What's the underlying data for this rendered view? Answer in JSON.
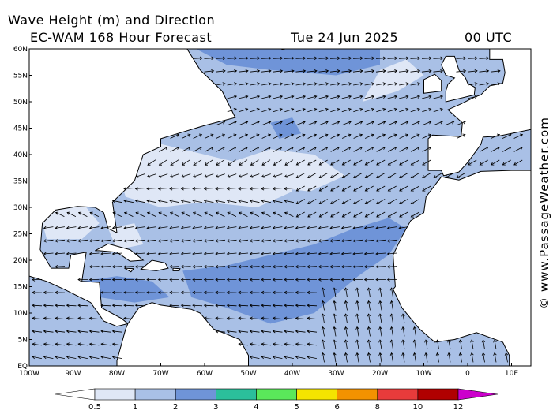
{
  "header": {
    "title": "Wave Height (m) and Direction",
    "model": "EC-WAM 168 Hour Forecast",
    "date": "Tue 24 Jun 2025",
    "time": "00 UTC"
  },
  "watermark": "© www.PassageWeather.com",
  "lat_labels": [
    "60N",
    "55N",
    "50N",
    "45N",
    "40N",
    "35N",
    "30N",
    "25N",
    "20N",
    "15N",
    "10N",
    "5N",
    "EQ"
  ],
  "lon_labels": [
    "100W",
    "90W",
    "80W",
    "70W",
    "60W",
    "50W",
    "40W",
    "30W",
    "20W",
    "10W",
    "0",
    "10E"
  ],
  "legend": {
    "labels": [
      "0.5",
      "1",
      "2",
      "3",
      "4",
      "5",
      "6",
      "8",
      "10",
      "12"
    ],
    "colors": [
      "#dfe7f6",
      "#a9c0e6",
      "#6f94d8",
      "#2bbf9b",
      "#5ae85a",
      "#f4e400",
      "#f39200",
      "#e83b3b",
      "#b00000"
    ],
    "under_color": "#ffffff",
    "over_color": "#cc00cc"
  }
}
